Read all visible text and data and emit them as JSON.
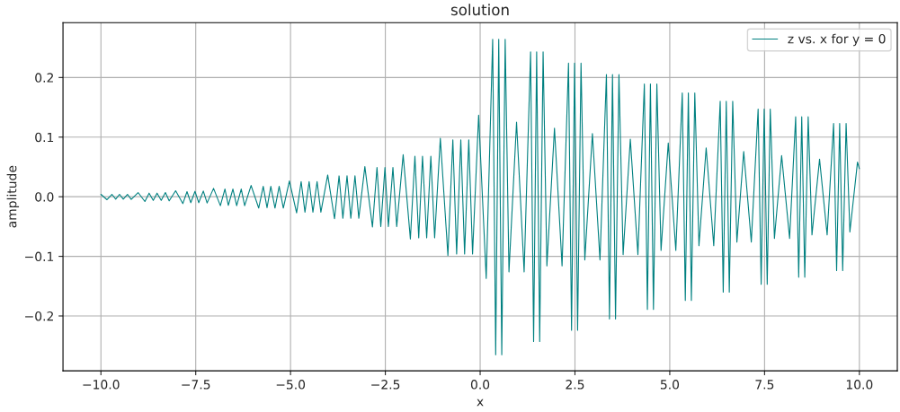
{
  "chart_data": {
    "type": "line",
    "title": "solution",
    "xlabel": "x",
    "ylabel": "amplitude",
    "x": [
      -10,
      -9.84,
      -9.71,
      -9.61,
      -9.51,
      -9.41,
      -9.3,
      -9.2,
      -9.02,
      -8.84,
      -8.73,
      -8.62,
      -8.52,
      -8.41,
      -8.3,
      -8.2,
      -8.03,
      -7.84,
      -7.73,
      -7.63,
      -7.52,
      -7.42,
      -7.3,
      -7.2,
      -7.03,
      -6.85,
      -6.73,
      -6.64,
      -6.52,
      -6.42,
      -6.3,
      -6.21,
      -6.04,
      -5.84,
      -5.72,
      -5.62,
      -5.52,
      -5.41,
      -5.3,
      -5.19,
      -5.03,
      -4.84,
      -4.72,
      -4.62,
      -4.51,
      -4.41,
      -4.3,
      -4.2,
      -4.02,
      -3.84,
      -3.72,
      -3.62,
      -3.51,
      -3.41,
      -3.3,
      -3.2,
      -3.04,
      -2.84,
      -2.72,
      -2.62,
      -2.51,
      -2.42,
      -2.3,
      -2.2,
      -2.03,
      -1.84,
      -1.72,
      -1.62,
      -1.52,
      -1.41,
      -1.3,
      -1.2,
      -1.05,
      -0.85,
      -0.72,
      -0.62,
      -0.51,
      -0.41,
      -0.3,
      -0.2,
      -0.04,
      0.16,
      0.33,
      0.41,
      0.49,
      0.57,
      0.66,
      0.76,
      0.96,
      1.16,
      1.33,
      1.41,
      1.49,
      1.57,
      1.66,
      1.76,
      1.96,
      2.16,
      2.33,
      2.41,
      2.49,
      2.57,
      2.66,
      2.76,
      2.96,
      3.16,
      3.33,
      3.41,
      3.49,
      3.57,
      3.66,
      3.77,
      3.96,
      4.16,
      4.33,
      4.41,
      4.49,
      4.57,
      4.66,
      4.77,
      4.96,
      5.16,
      5.33,
      5.41,
      5.49,
      5.57,
      5.66,
      5.77,
      5.96,
      6.16,
      6.33,
      6.41,
      6.49,
      6.57,
      6.66,
      6.77,
      6.95,
      7.15,
      7.33,
      7.41,
      7.49,
      7.57,
      7.65,
      7.76,
      7.95,
      8.16,
      8.32,
      8.4,
      8.48,
      8.56,
      8.65,
      8.75,
      8.95,
      9.15,
      9.32,
      9.4,
      9.48,
      9.56,
      9.65,
      9.75,
      9.95,
      10
    ],
    "series": [
      {
        "name": "z vs. x for y = 0",
        "color": "#008080",
        "values": [
          0.004,
          -0.005,
          0.004,
          -0.004,
          0.004,
          -0.004,
          0.004,
          -0.0045,
          0.007,
          -0.008,
          0.006,
          -0.006,
          0.006,
          -0.006,
          0.007,
          -0.007,
          0.01,
          -0.0115,
          0.0085,
          -0.01,
          0.009,
          -0.01,
          0.0095,
          -0.0105,
          0.014,
          -0.015,
          0.013,
          -0.0145,
          0.013,
          -0.015,
          0.013,
          -0.015,
          0.019,
          -0.019,
          0.0175,
          -0.0185,
          0.0175,
          -0.019,
          0.0175,
          -0.019,
          0.0265,
          -0.027,
          0.0255,
          -0.026,
          0.0255,
          -0.026,
          0.0255,
          -0.026,
          0.0365,
          -0.037,
          0.035,
          -0.036,
          0.035,
          -0.036,
          0.035,
          -0.036,
          0.0505,
          -0.051,
          0.049,
          -0.05,
          0.049,
          -0.05,
          0.049,
          -0.05,
          0.0705,
          -0.071,
          0.068,
          -0.069,
          0.068,
          -0.069,
          0.068,
          -0.069,
          0.098,
          -0.0985,
          0.0955,
          -0.096,
          0.0955,
          -0.096,
          0.0955,
          -0.096,
          0.137,
          -0.137,
          0.264,
          -0.265,
          0.264,
          -0.265,
          0.264,
          -0.126,
          0.125,
          -0.126,
          0.243,
          -0.243,
          0.243,
          -0.243,
          0.243,
          -0.116,
          0.115,
          -0.116,
          0.224,
          -0.224,
          0.224,
          -0.224,
          0.224,
          -0.106,
          0.106,
          -0.106,
          0.205,
          -0.205,
          0.205,
          -0.205,
          0.205,
          -0.097,
          0.0965,
          -0.097,
          0.189,
          -0.189,
          0.189,
          -0.189,
          0.189,
          -0.09,
          0.09,
          -0.09,
          0.174,
          -0.174,
          0.174,
          -0.174,
          0.174,
          -0.082,
          0.082,
          -0.082,
          0.16,
          -0.16,
          0.16,
          -0.16,
          0.16,
          -0.076,
          0.076,
          -0.076,
          0.147,
          -0.147,
          0.147,
          -0.147,
          0.147,
          -0.07,
          0.069,
          -0.07,
          0.134,
          -0.135,
          0.134,
          -0.135,
          0.134,
          -0.064,
          0.063,
          -0.064,
          0.123,
          -0.124,
          0.123,
          -0.124,
          0.123,
          -0.059,
          0.058,
          0.047
        ]
      }
    ],
    "xlim": [
      -11,
      11
    ],
    "ylim": [
      -0.292,
      0.292
    ],
    "xticks": [
      {
        "value": -10,
        "label": "−10.0"
      },
      {
        "value": -7.5,
        "label": "−7.5"
      },
      {
        "value": -5,
        "label": "−5.0"
      },
      {
        "value": -2.5,
        "label": "−2.5"
      },
      {
        "value": 0,
        "label": "0.0"
      },
      {
        "value": 2.5,
        "label": "2.5"
      },
      {
        "value": 5,
        "label": "5.0"
      },
      {
        "value": 7.5,
        "label": "7.5"
      },
      {
        "value": 10,
        "label": "10.0"
      }
    ],
    "yticks": [
      {
        "value": -0.2,
        "label": "−0.2"
      },
      {
        "value": -0.1,
        "label": "−0.1"
      },
      {
        "value": 0,
        "label": "0.0"
      },
      0.1,
      0.2
    ],
    "grid": true,
    "legend": "top right",
    "marker": "none",
    "line_style": "solid"
  }
}
